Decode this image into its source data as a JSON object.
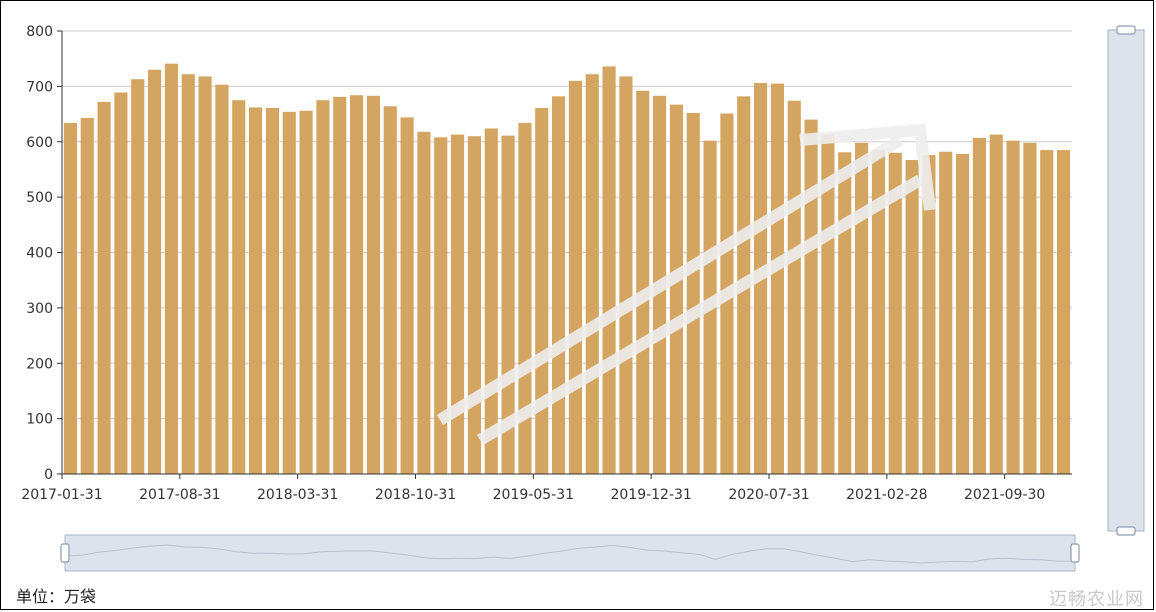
{
  "unit_label": "单位：万袋",
  "brand_label": "迈畅农业网",
  "colors": {
    "bar": "#D4A461",
    "axis": "#333333",
    "grid": "#cccccc",
    "zoom_bg": "#dde3ec",
    "zoom_border": "#aab6c8"
  },
  "chart_data": {
    "type": "bar",
    "title": "",
    "xlabel": "",
    "ylabel": "",
    "ylim": [
      0,
      800
    ],
    "yticks": [
      0,
      100,
      200,
      300,
      400,
      500,
      600,
      700,
      800
    ],
    "grid": true,
    "xtick_labels": [
      "2017-01-31",
      "2017-08-31",
      "2018-03-31",
      "2018-10-31",
      "2019-05-31",
      "2019-12-31",
      "2020-07-31",
      "2021-02-28",
      "2021-09-30"
    ],
    "categories": [
      "2017-01-31",
      "2017-02-28",
      "2017-03-31",
      "2017-04-30",
      "2017-05-31",
      "2017-06-30",
      "2017-07-31",
      "2017-08-31",
      "2017-09-30",
      "2017-10-31",
      "2017-11-30",
      "2017-12-31",
      "2018-01-31",
      "2018-02-28",
      "2018-03-31",
      "2018-04-30",
      "2018-05-31",
      "2018-06-30",
      "2018-07-31",
      "2018-08-31",
      "2018-09-30",
      "2018-10-31",
      "2018-11-30",
      "2018-12-31",
      "2019-01-31",
      "2019-02-28",
      "2019-03-31",
      "2019-04-30",
      "2019-05-31",
      "2019-06-30",
      "2019-07-31",
      "2019-08-31",
      "2019-09-30",
      "2019-10-31",
      "2019-11-30",
      "2019-12-31",
      "2020-01-31",
      "2020-02-29",
      "2020-03-31",
      "2020-04-30",
      "2020-05-31",
      "2020-06-30",
      "2020-07-31",
      "2020-08-31",
      "2020-09-30",
      "2020-10-31",
      "2020-11-30",
      "2020-12-31",
      "2021-01-31",
      "2021-02-28",
      "2021-03-31",
      "2021-04-30",
      "2021-05-31",
      "2021-06-30",
      "2021-07-31",
      "2021-08-31",
      "2021-09-30",
      "2021-10-31",
      "2021-11-30",
      "2021-12-31"
    ],
    "values": [
      634,
      643,
      672,
      689,
      713,
      730,
      741,
      722,
      718,
      703,
      675,
      662,
      661,
      654,
      656,
      675,
      681,
      684,
      683,
      664,
      644,
      618,
      608,
      613,
      610,
      624,
      611,
      634,
      661,
      682,
      710,
      722,
      736,
      718,
      692,
      683,
      667,
      652,
      602,
      651,
      682,
      706,
      705,
      674,
      640,
      613,
      581,
      598,
      585,
      580,
      567,
      576,
      582,
      578,
      607,
      613,
      602,
      598,
      585,
      585
    ]
  }
}
